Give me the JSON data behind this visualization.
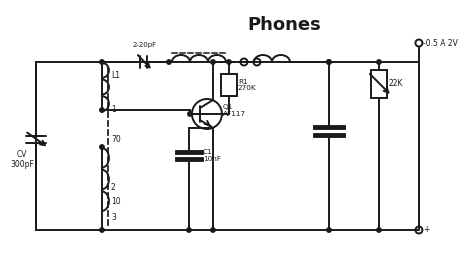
{
  "title": "Phones",
  "bg_color": "#ffffff",
  "line_color": "#1a1a1a",
  "lw": 1.4,
  "labels": {
    "cv": "CV\n300pF",
    "l1": "L1",
    "tap1": "1",
    "tap70": "70",
    "tap2": "2",
    "tap10": "10",
    "tap3": "3",
    "c_trim": "2-20pF",
    "r1": "R1\n270K",
    "q1": "Q1\nAF117",
    "c1": "C1\n10nF",
    "res_var": "22K",
    "vcc": "-0.5 A 2V",
    "gnd": "+"
  }
}
